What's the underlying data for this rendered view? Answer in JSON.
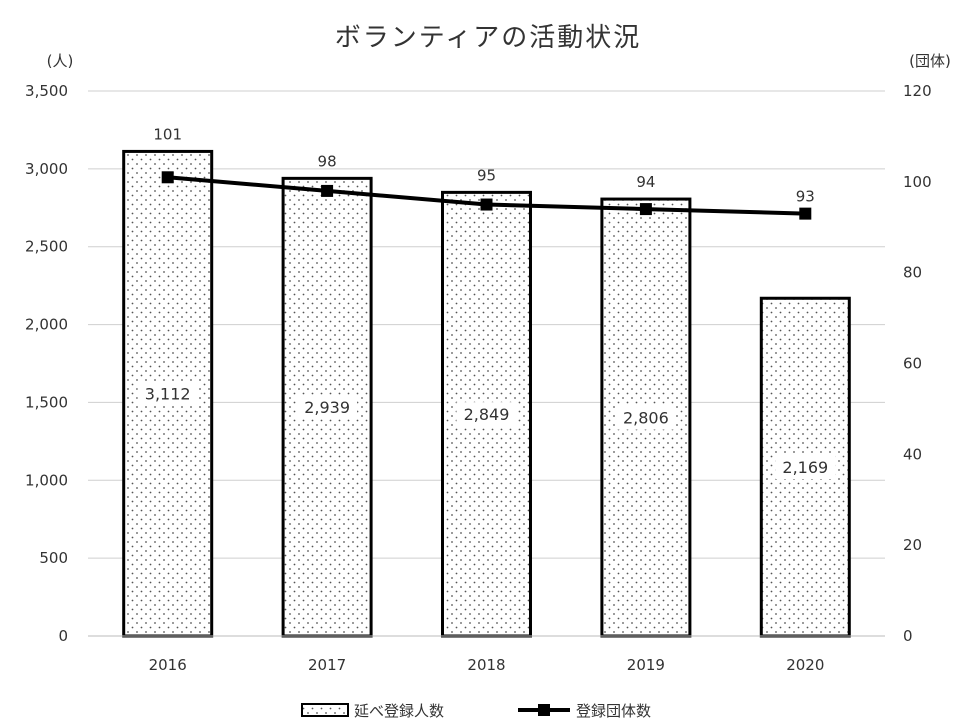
{
  "chart_data": {
    "type": "bar+line",
    "title": "ボランティアの活動状況",
    "categories": [
      "2016",
      "2017",
      "2018",
      "2019",
      "2020"
    ],
    "y_left": {
      "unit_label": "(人)",
      "range": [
        0,
        3500
      ],
      "ticks": [
        0,
        500,
        1000,
        1500,
        2000,
        2500,
        3000,
        3500
      ],
      "tick_labels": [
        "0",
        "500",
        "1,000",
        "1,500",
        "2,000",
        "2,500",
        "3,000",
        "3,500"
      ]
    },
    "y_right": {
      "unit_label": "(団体)",
      "range": [
        0,
        120
      ],
      "ticks": [
        0,
        20,
        40,
        60,
        80,
        100,
        120
      ],
      "tick_labels": [
        "0",
        "20",
        "40",
        "60",
        "80",
        "100",
        "120"
      ]
    },
    "grid": true,
    "legend_position": "bottom",
    "series": [
      {
        "name": "延べ登録人数",
        "type": "bar",
        "axis": "left",
        "pattern": "dotted",
        "values": [
          3112,
          2939,
          2849,
          2806,
          2169
        ],
        "value_labels": [
          "3,112",
          "2,939",
          "2,849",
          "2,806",
          "2,169"
        ]
      },
      {
        "name": "登録団体数",
        "type": "line",
        "axis": "right",
        "marker": "square",
        "color": "#000000",
        "values": [
          101,
          98,
          95,
          94,
          93
        ],
        "value_labels": [
          "101",
          "98",
          "95",
          "94",
          "93"
        ]
      }
    ]
  }
}
